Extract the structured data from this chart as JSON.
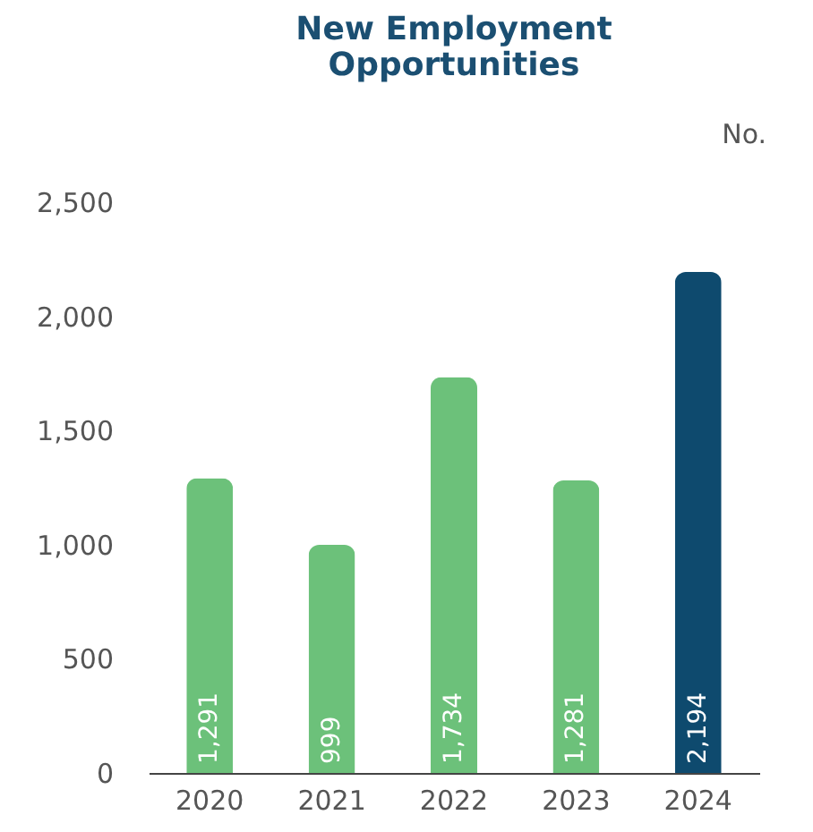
{
  "chart_data": {
    "type": "bar",
    "title": "New Employment Opportunities",
    "annotations": [
      "No."
    ],
    "categories": [
      "2020",
      "2021",
      "2022",
      "2023",
      "2024"
    ],
    "values": [
      1291,
      999,
      1734,
      1281,
      2194
    ],
    "colors": [
      "#6cc17a",
      "#6cc17a",
      "#6cc17a",
      "#6cc17a",
      "#0e4a6e"
    ],
    "value_labels": [
      "1,291",
      "999",
      "1,734",
      "1,281",
      "2,194"
    ],
    "ylim": [
      0,
      2500
    ],
    "yticks": [
      0,
      500,
      {
        "value": 1000,
        "label": "1,000"
      },
      {
        "value": 1500,
        "label": "1,500"
      },
      {
        "value": 2000,
        "label": "2,000"
      },
      {
        "value": 2500,
        "label": "2,500"
      }
    ],
    "grid": false
  }
}
